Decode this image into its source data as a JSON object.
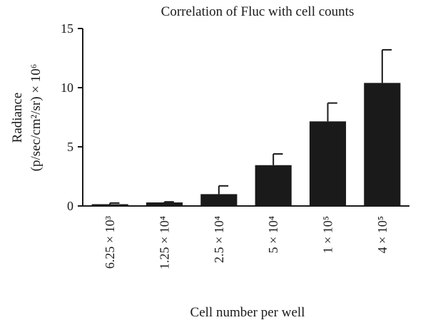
{
  "chart_data": {
    "type": "bar",
    "title": "Correlation of Fluc with cell counts",
    "xlabel": "Cell number per well",
    "ylabel_line1": "Radiance",
    "ylabel_line2": "(p/sec/cm²/sr) × 10⁶",
    "categories": [
      "6.25 × 10³",
      "1.25 × 10⁴",
      "2.5 × 10⁴",
      "5 × 10⁴",
      "1 × 10⁵",
      "4 × 10⁵"
    ],
    "values": [
      0.15,
      0.3,
      1.0,
      3.45,
      7.15,
      10.4
    ],
    "errors": [
      0.1,
      0.05,
      0.7,
      0.95,
      1.55,
      2.8
    ],
    "yticks": [
      0,
      5,
      10,
      15
    ],
    "ylim": [
      0,
      15
    ],
    "bar_color": "#1a1a1a",
    "grid": false
  }
}
